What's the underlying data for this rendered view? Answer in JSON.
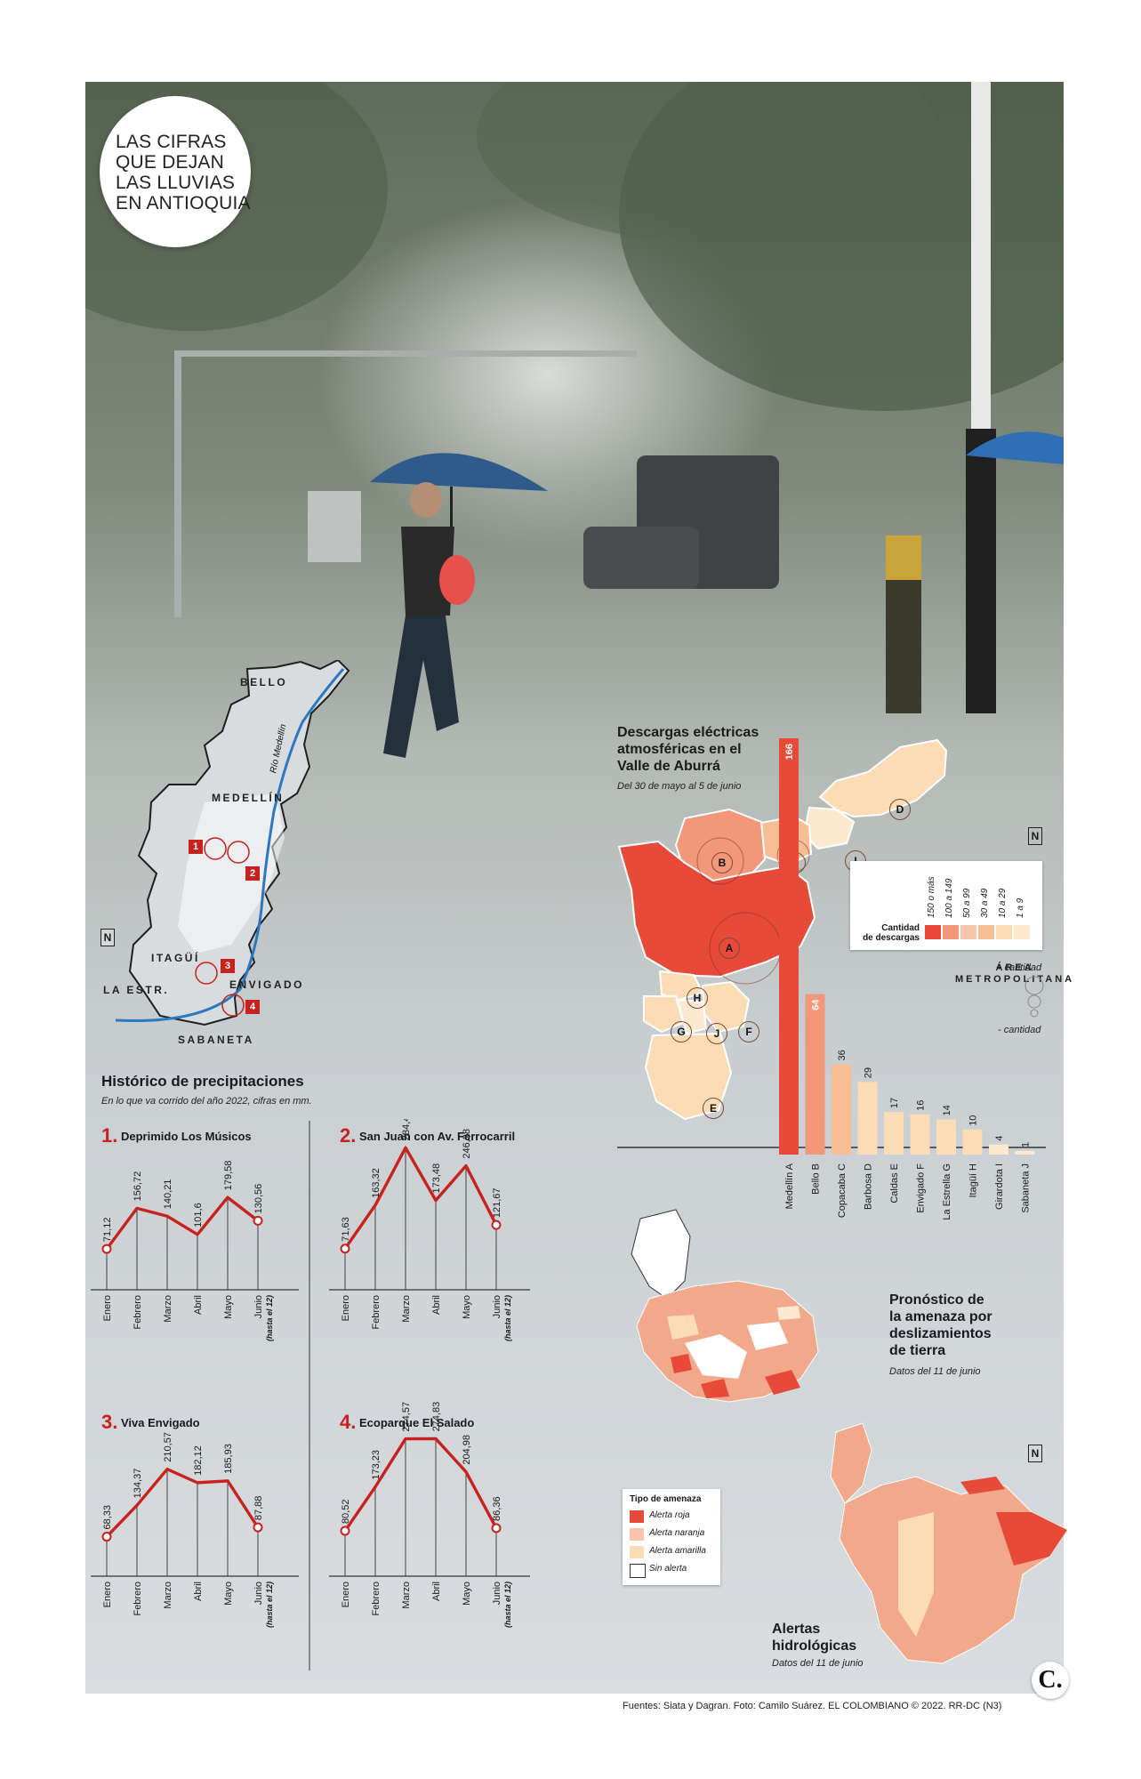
{
  "title_badge": "LAS CIFRAS\nQUE DEJAN\nLAS LLUVIAS\nEN ANTIOQUIA",
  "colors": {
    "line": "#c8221f",
    "red": "#e84a3a",
    "orange": "#f2977a",
    "peach": "#f7bd94",
    "cream": "#fbdcb4",
    "paler": "#fde9cf",
    "pink": "#f8c6ad"
  },
  "aburra_map": {
    "places": [
      "BELLO",
      "MEDELLÍN",
      "ITAGÜÍ",
      "ENVIGADO",
      "LA ESTR.",
      "SABANETA"
    ],
    "river": "Río Medellín",
    "markers": [
      "1",
      "2",
      "3",
      "4"
    ],
    "north": "N"
  },
  "precip": {
    "title": "Histórico de precipitaciones",
    "subtitle": "En lo que va corrido del año 2022, cifras en mm."
  },
  "chart_data": [
    {
      "type": "line",
      "title": "Deprimido Los Músicos",
      "number": "1.",
      "categories": [
        "Enero",
        "Febrero",
        "Marzo",
        "Abril",
        "Mayo",
        "Junio"
      ],
      "last_note": "(hasta el 12)",
      "values": [
        71.12,
        156.72,
        140.21,
        101.6,
        179.58,
        130.56
      ],
      "labels": [
        "71,12",
        "156,72",
        "140,21",
        "101,6",
        "179,58",
        "130,56"
      ],
      "ylim": [
        0,
        300
      ]
    },
    {
      "type": "line",
      "title": "San Juan con Av. Ferrocarril",
      "number": "2.",
      "categories": [
        "Enero",
        "Febrero",
        "Marzo",
        "Abril",
        "Mayo",
        "Junio"
      ],
      "last_note": "(hasta el 12)",
      "values": [
        71.63,
        163.32,
        284.48,
        173.48,
        246.38,
        121.67
      ],
      "labels": [
        "71,63",
        "163,32",
        "284,48",
        "173,48",
        "246,38",
        "121,67"
      ],
      "ylim": [
        0,
        300
      ]
    },
    {
      "type": "line",
      "title": "Viva Envigado",
      "number": "3.",
      "categories": [
        "Enero",
        "Febrero",
        "Marzo",
        "Abril",
        "Mayo",
        "Junio"
      ],
      "last_note": "(hasta el 12)",
      "values": [
        68.33,
        134.37,
        210.57,
        182.12,
        185.93,
        87.88
      ],
      "labels": [
        "68,33",
        "134,37",
        "210,57",
        "182,12",
        "185,93",
        "87,88"
      ],
      "ylim": [
        0,
        300
      ]
    },
    {
      "type": "line",
      "title": "Ecoparque El Salado",
      "number": "4.",
      "categories": [
        "Enero",
        "Febrero",
        "Marzo",
        "Abril",
        "Mayo",
        "Junio"
      ],
      "last_note": "(hasta el 12)",
      "values": [
        80.52,
        173.23,
        274.57,
        274.83,
        204.98,
        86.36
      ],
      "labels": [
        "80,52",
        "173,23",
        "274,57",
        "274,83",
        "204,98",
        "86,36"
      ],
      "ylim": [
        0,
        300
      ]
    },
    {
      "type": "bar",
      "title": "Descargas eléctricas\natmosféricas en el\nValle de Aburrá",
      "subtitle": "Del 30 de mayo al 5 de junio",
      "categories": [
        "Medellín A",
        "Bello B",
        "Copacaba C",
        "Barbosa D",
        "Caldas E",
        "Envigado F",
        "La Estrella G",
        "Itagüí H",
        "Girardota I",
        "Sabaneta J"
      ],
      "values": [
        166,
        64,
        36,
        29,
        17,
        16,
        14,
        10,
        4,
        1
      ],
      "bar_colors": [
        "#e84a3a",
        "#f2977a",
        "#f7bd94",
        "#fbdcb4",
        "#fbdcb4",
        "#fbdcb4",
        "#fbdcb4",
        "#fbdcb4",
        "#fde9cf",
        "#fde9cf"
      ]
    }
  ],
  "discharges": {
    "zones": [
      "A",
      "B",
      "C",
      "D",
      "E",
      "F",
      "G",
      "H",
      "I",
      "J"
    ],
    "legend_title": "Cantidad\nde descargas",
    "legend_items": [
      "150 o más",
      "100 a 149",
      "50 a 99",
      "30 a 49",
      "10 a 29",
      "1 a 9"
    ],
    "area_label": "ÁREA\nMETROPOLITANA",
    "more": "+ cantidad",
    "less": "- cantidad",
    "north": "N"
  },
  "landslide": {
    "title": "Pronóstico de\nla amenaza por\ndeslizamientos\nde tierra",
    "subtitle": "Datos del 11 de junio"
  },
  "hydro": {
    "title": "Alertas\nhidrológicas",
    "subtitle": "Datos del 11 de junio",
    "north": "N"
  },
  "threat_legend": {
    "title": "Tipo de amenaza",
    "items": [
      "Alerta roja",
      "Alerta naranja",
      "Alerta amarilla",
      "Sin alerta"
    ]
  },
  "footer": "Fuentes: Siata y Dagran. Foto: Camilo Suárez. EL COLOMBIANO © 2022. RR-DC (N3)",
  "logo": "C."
}
